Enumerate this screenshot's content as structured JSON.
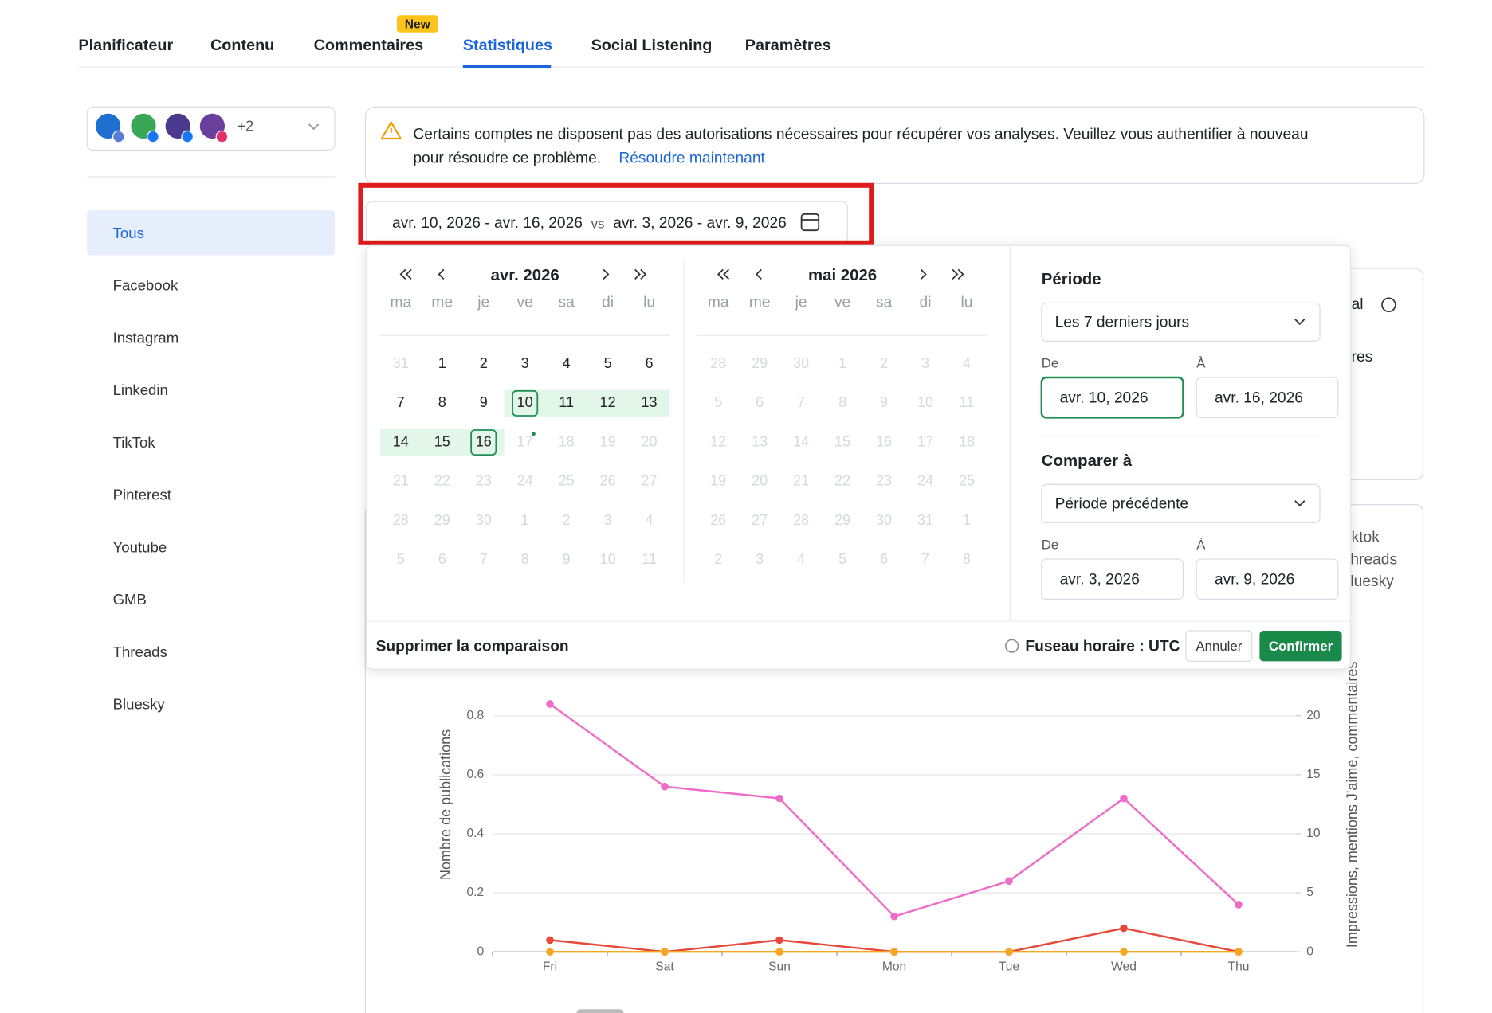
{
  "nav": {
    "tabs": [
      "Planificateur",
      "Contenu",
      "Commentaires",
      "Statistiques",
      "Social Listening",
      "Paramètres"
    ],
    "badge": "New"
  },
  "account_selector": {
    "more": "+2"
  },
  "sidebar": {
    "items": [
      "Tous",
      "Facebook",
      "Instagram",
      "Linkedin",
      "TikTok",
      "Pinterest",
      "Youtube",
      "GMB",
      "Threads",
      "Bluesky"
    ]
  },
  "alert": {
    "line1": "Certains comptes ne disposent pas des autorisations nécessaires pour récupérer vos analyses. Veuillez vous authentifier à nouveau",
    "line2": "pour résoudre ce problème.",
    "link": "Résoudre maintenant"
  },
  "date_range": {
    "current": "avr. 10, 2026 - avr. 16, 2026",
    "vs": "vs",
    "previous": "avr. 3, 2026 - avr. 9, 2026"
  },
  "date_picker": {
    "weekdays": [
      "ma",
      "me",
      "je",
      "ve",
      "sa",
      "di",
      "lu"
    ],
    "months": [
      {
        "title": "avr. 2026",
        "days": [
          31,
          1,
          2,
          3,
          4,
          5,
          6,
          7,
          8,
          9,
          10,
          11,
          12,
          13,
          14,
          15,
          16,
          17,
          18,
          19,
          20,
          21,
          22,
          23,
          24,
          25,
          26,
          27,
          28,
          29,
          30,
          1,
          2,
          3,
          4,
          5,
          6,
          7,
          8,
          9,
          10,
          11
        ]
      },
      {
        "title": "mai 2026",
        "days": [
          28,
          29,
          30,
          1,
          2,
          3,
          4,
          5,
          6,
          7,
          8,
          9,
          10,
          11,
          12,
          13,
          14,
          15,
          16,
          17,
          18,
          19,
          20,
          21,
          22,
          23,
          24,
          25,
          26,
          27,
          28,
          29,
          30,
          31,
          1,
          2,
          3,
          4,
          5,
          6,
          7,
          8
        ]
      }
    ]
  },
  "period": {
    "label": "Période",
    "selected": "Les 7 derniers jours",
    "from_label": "De",
    "to_label": "À",
    "from": "avr. 10, 2026",
    "to": "avr. 16, 2026"
  },
  "compare": {
    "label": "Comparer à",
    "selected": "Période précédente",
    "from_label": "De",
    "to_label": "À",
    "from": "avr. 3, 2026",
    "to": "avr. 9, 2026"
  },
  "footer": {
    "remove": "Supprimer la comparaison",
    "timezone": "Fuseau horaire : UTC",
    "cancel": "Annuler",
    "confirm": "Confirmer"
  },
  "background_fragments": [
    "al",
    "res",
    "ktok",
    "hreads",
    "luesky"
  ],
  "chart_data": {
    "type": "line",
    "y_label": "Nombre de publications",
    "y2_label": "Impressions, mentions J'aime, commentaires",
    "categories": [
      "Fri",
      "Sat",
      "Sun",
      "Mon",
      "Tue",
      "Wed",
      "Thu"
    ],
    "ylim": [
      0,
      0.84
    ],
    "yticks": [
      0,
      0.2,
      0.4,
      0.6,
      0.8
    ],
    "y2lim": [
      0,
      21
    ],
    "y2ticks": [
      0,
      5,
      10,
      15,
      20
    ],
    "grid": true,
    "series": [
      {
        "color": "#f06bc8",
        "axis": "y2",
        "values": [
          21,
          14,
          13,
          3,
          6,
          13,
          4
        ]
      },
      {
        "color": "#e8483a",
        "axis": "y2",
        "values": [
          1,
          0,
          1,
          0,
          0,
          2,
          0
        ]
      },
      {
        "color": "#f5a623",
        "values": [
          0,
          0,
          0,
          0,
          0,
          0,
          0
        ]
      }
    ]
  }
}
